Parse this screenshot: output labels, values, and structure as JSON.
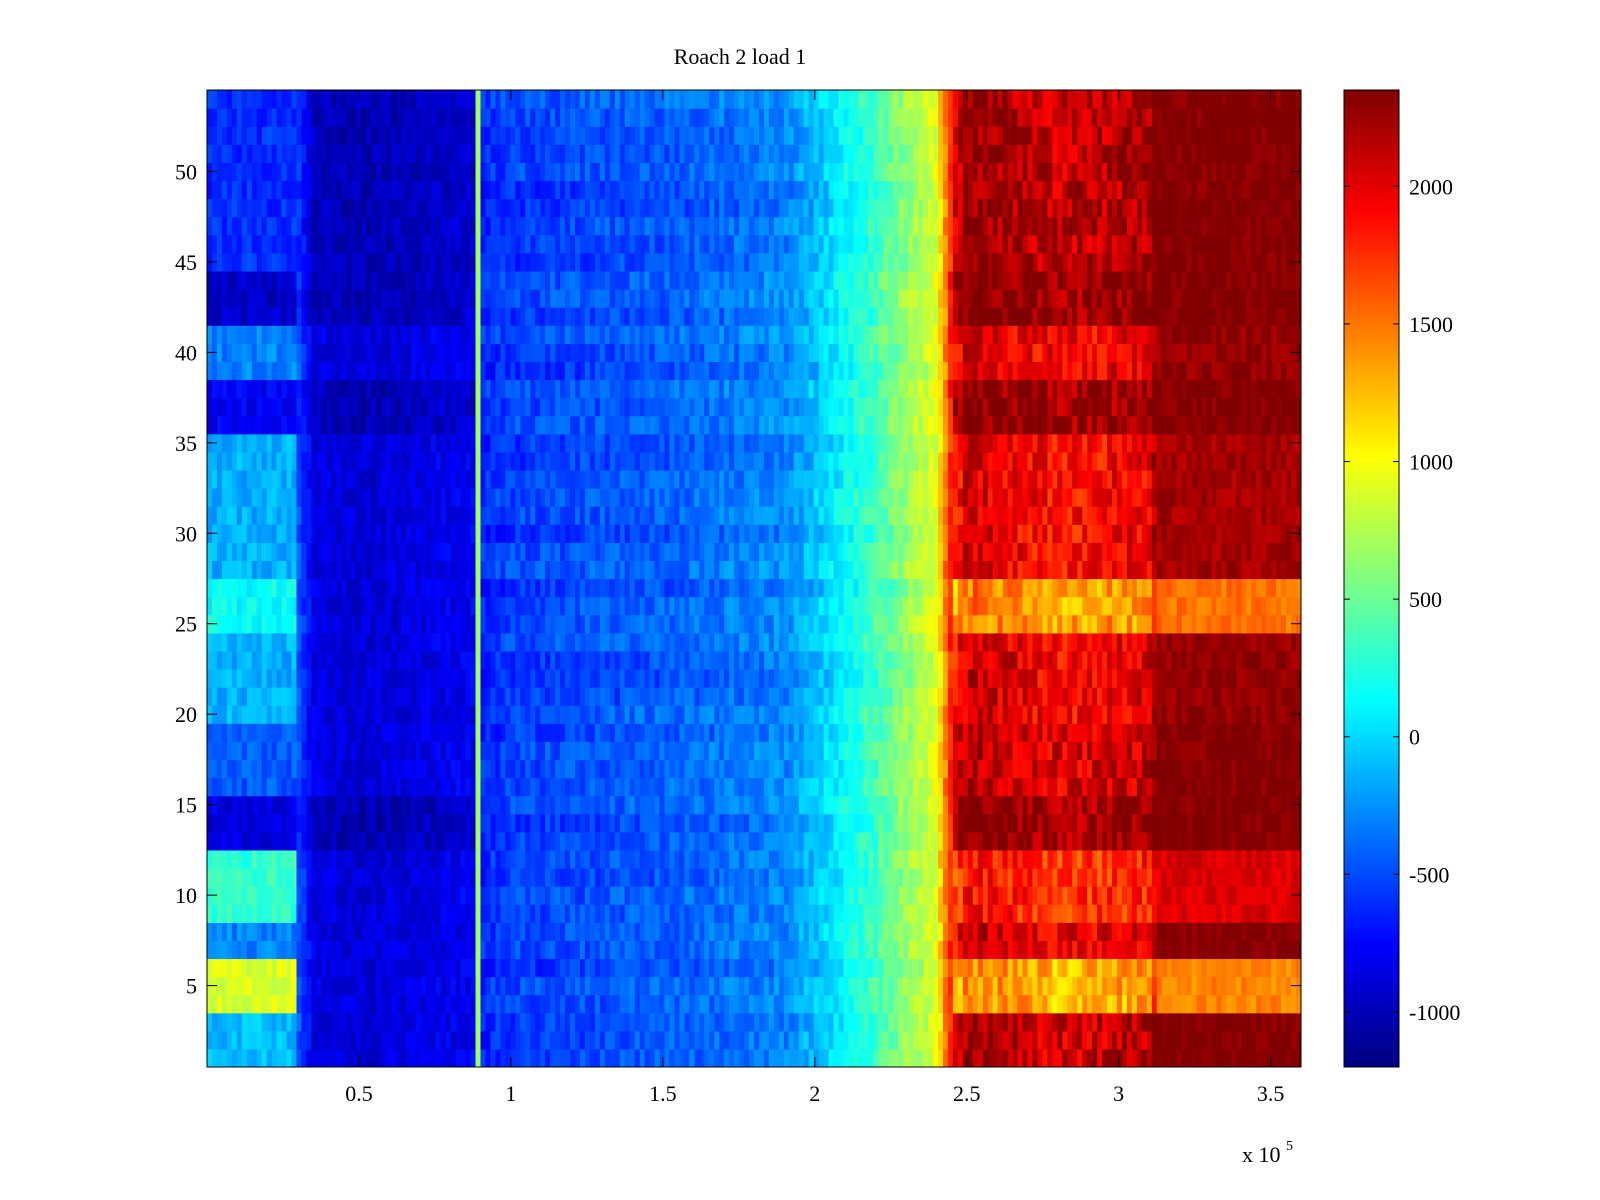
{
  "chart_data": {
    "type": "heatmap",
    "title": "Roach 2 load 1",
    "xlabel": "",
    "ylabel": "",
    "x_multiplier_label": {
      "base": "x 10",
      "exponent": "5"
    },
    "xlim": [
      0,
      3.6
    ],
    "ylim": [
      0.5,
      54.5
    ],
    "x_ticks": [
      0.5,
      1,
      1.5,
      2,
      2.5,
      3,
      3.5
    ],
    "x_tick_labels": [
      "0.5",
      "1",
      "1.5",
      "2",
      "2.5",
      "3",
      "3.5"
    ],
    "y_ticks": [
      5,
      10,
      15,
      20,
      25,
      30,
      35,
      40,
      45,
      50
    ],
    "y_tick_labels": [
      "5",
      "10",
      "15",
      "20",
      "25",
      "30",
      "35",
      "40",
      "45",
      "50"
    ],
    "rows": 54,
    "colormap": "jet",
    "clim": [
      -1200,
      2350
    ],
    "colorbar_ticks": [
      -1000,
      -500,
      0,
      500,
      1000,
      1500,
      2000
    ],
    "colorbar_tick_labels": [
      "-1000",
      "-500",
      "0",
      "500",
      "1000",
      "1500",
      "2000"
    ],
    "column_profile": {
      "x": [
        0.0,
        0.3,
        0.35,
        0.5,
        0.7,
        0.88,
        0.9,
        1.0,
        1.5,
        1.9,
        2.0,
        2.2,
        2.4,
        2.45,
        2.5,
        2.8,
        3.1,
        3.12,
        3.6
      ],
      "value": [
        -350,
        -450,
        -850,
        -900,
        -850,
        -800,
        -650,
        -550,
        -450,
        -300,
        -100,
        350,
        900,
        1800,
        2150,
        1950,
        2050,
        2350,
        2350
      ]
    },
    "bright_line_x": 0.885,
    "bright_line_value": 700,
    "row_groups": [
      {
        "rows": [
          1,
          3
        ],
        "left_value": -100,
        "right_offset": 100,
        "dark": false
      },
      {
        "rows": [
          4,
          6
        ],
        "left_value": 900,
        "right_offset": -700,
        "dark": false
      },
      {
        "rows": [
          7,
          8
        ],
        "left_value": -300,
        "right_offset": 0,
        "dark": false
      },
      {
        "rows": [
          9,
          12
        ],
        "left_value": 300,
        "right_offset": -250,
        "dark": false
      },
      {
        "rows": [
          13,
          15
        ],
        "left_value": -850,
        "right_offset": 250,
        "dark": true
      },
      {
        "rows": [
          16,
          19
        ],
        "left_value": -450,
        "right_offset": 50,
        "dark": false
      },
      {
        "rows": [
          20,
          24
        ],
        "left_value": -150,
        "right_offset": -50,
        "dark": false
      },
      {
        "rows": [
          25,
          27
        ],
        "left_value": 150,
        "right_offset": -650,
        "dark": false
      },
      {
        "rows": [
          28,
          35
        ],
        "left_value": -150,
        "right_offset": -100,
        "dark": false
      },
      {
        "rows": [
          36,
          38
        ],
        "left_value": -800,
        "right_offset": 250,
        "dark": true
      },
      {
        "rows": [
          39,
          41
        ],
        "left_value": -300,
        "right_offset": -50,
        "dark": false
      },
      {
        "rows": [
          42,
          44
        ],
        "left_value": -950,
        "right_offset": 300,
        "dark": true
      },
      {
        "rows": [
          45,
          54
        ],
        "left_value": -600,
        "right_offset": 150,
        "dark": true
      }
    ]
  }
}
